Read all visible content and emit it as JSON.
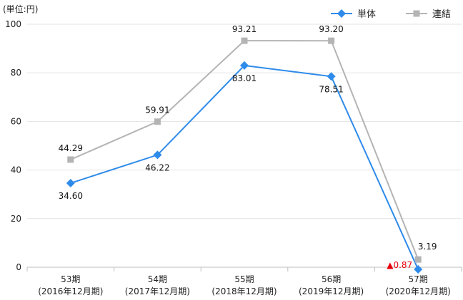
{
  "chart_data": {
    "type": "line",
    "unit_label": "(単位:円)",
    "categories": [
      {
        "period": "53期",
        "year": "(2016年12月期)"
      },
      {
        "period": "54期",
        "year": "(2017年12月期)"
      },
      {
        "period": "55期",
        "year": "(2018年12月期)"
      },
      {
        "period": "56期",
        "year": "(2019年12月期)"
      },
      {
        "period": "57期",
        "year": "(2020年12月期)"
      }
    ],
    "ylim": [
      0,
      100
    ],
    "yticks": [
      "0",
      "20",
      "40",
      "60",
      "80",
      "100"
    ],
    "grid": true,
    "legend_position": "top-right",
    "series": [
      {
        "name": "単体",
        "color": "#2E8BEA",
        "marker": "diamond",
        "values": [
          34.6,
          46.22,
          83.01,
          78.51,
          -0.87
        ],
        "labels": [
          "34.60",
          "46.22",
          "83.01",
          "78.51",
          "▲0.87"
        ]
      },
      {
        "name": "連結",
        "color": "#B4B4B4",
        "marker": "square",
        "values": [
          44.29,
          59.91,
          93.21,
          93.2,
          3.19
        ],
        "labels": [
          "44.29",
          "59.91",
          "93.21",
          "93.20",
          "3.19"
        ]
      }
    ],
    "negative_label_color": "#E8000B"
  }
}
